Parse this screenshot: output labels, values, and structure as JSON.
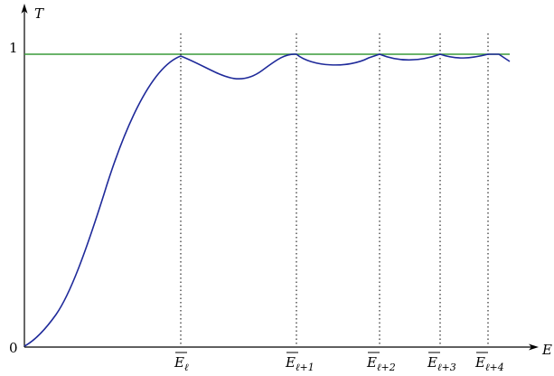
{
  "chart_data": {
    "type": "line",
    "xlabel": "E",
    "ylabel": "T",
    "y_ticks": [
      {
        "value": 0,
        "label": "0"
      },
      {
        "value": 1,
        "label": "1"
      }
    ],
    "markers": [
      {
        "base": "E",
        "sub": "ℓ"
      },
      {
        "base": "E",
        "sub": "ℓ+1"
      },
      {
        "base": "E",
        "sub": "ℓ+2"
      },
      {
        "base": "E",
        "sub": "ℓ+3"
      },
      {
        "base": "E",
        "sub": "ℓ+4"
      }
    ],
    "reference_line": {
      "y": 1,
      "color": "#3a9a3a"
    },
    "curve_color": "#1f2a9a",
    "grid": false,
    "legend": "none"
  }
}
